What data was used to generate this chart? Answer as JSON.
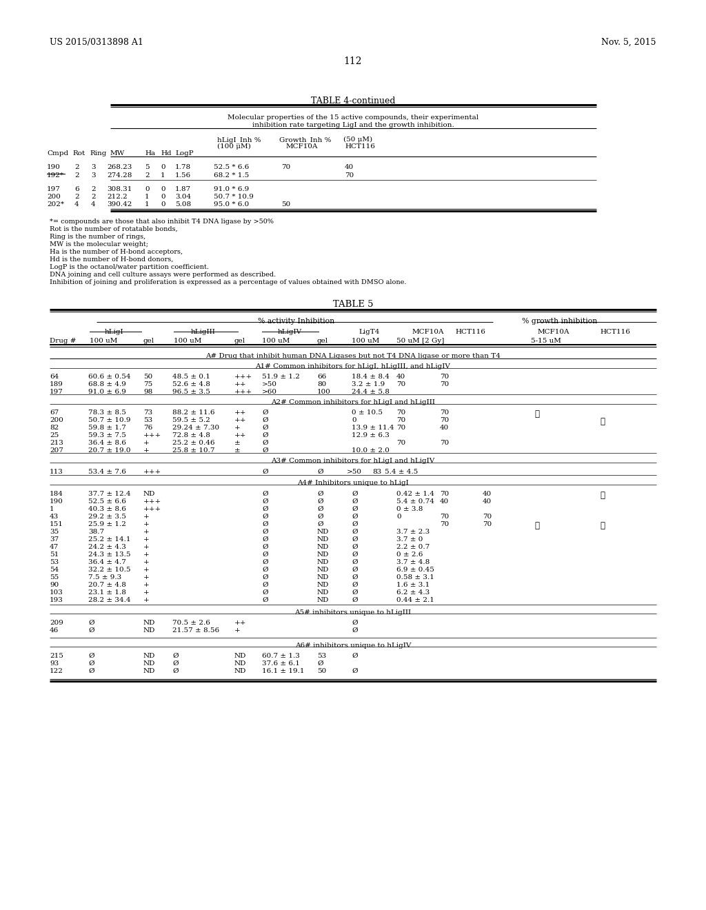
{
  "background_color": "#ffffff",
  "header_left": "US 2015/0313898 A1",
  "header_right": "Nov. 5, 2015",
  "page_number": "112"
}
